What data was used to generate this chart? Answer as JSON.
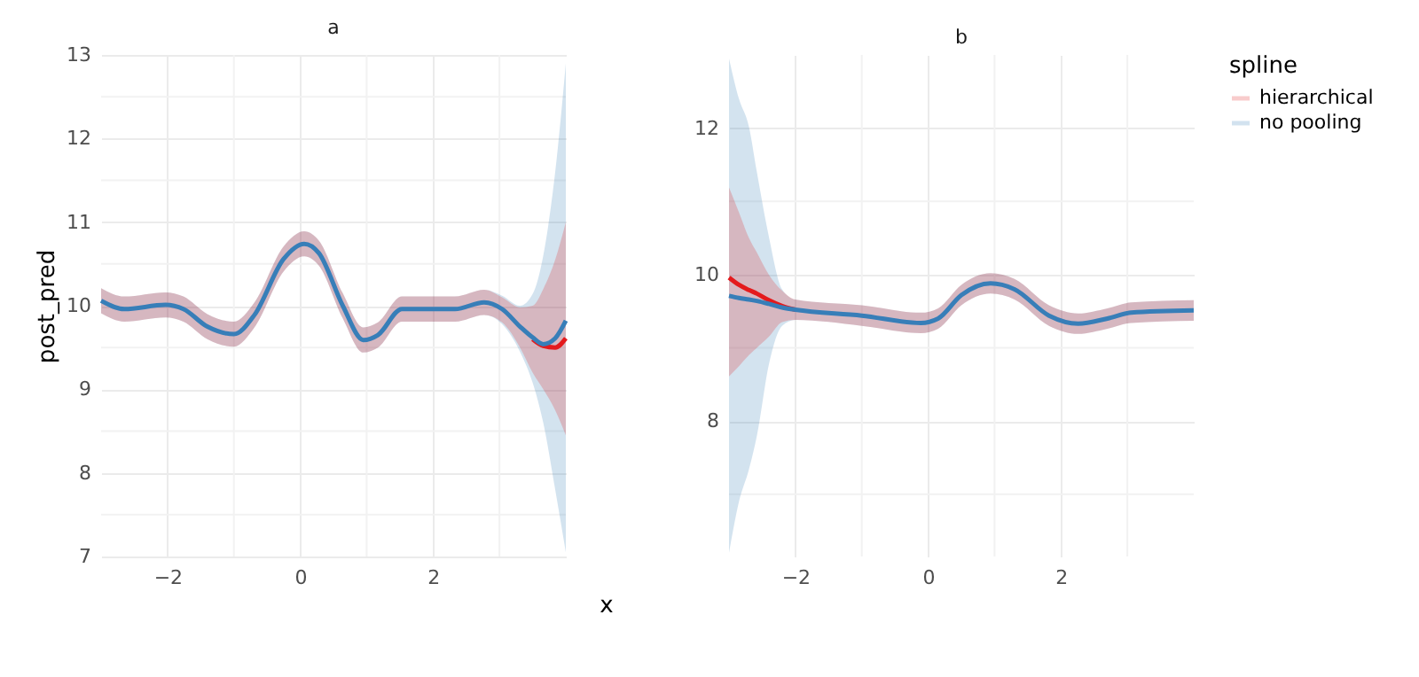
{
  "chart_data": [
    {
      "type": "line",
      "title": "a",
      "legend_title": "spline",
      "legend": "right",
      "xlabel": "x",
      "ylabel": "post_pred",
      "xlim": [
        -3,
        4
      ],
      "ylim": [
        7,
        13
      ],
      "xticks": [
        {
          "value": -2,
          "label": "−2"
        },
        {
          "value": -1,
          "label": null
        },
        {
          "value": 0,
          "label": "0"
        },
        {
          "value": 1,
          "label": null
        },
        {
          "value": 2,
          "label": "2"
        },
        {
          "value": 3,
          "label": null
        }
      ],
      "yticks": [
        7,
        {
          "value": 7.5,
          "label": null
        },
        8,
        {
          "value": 8.5,
          "label": null
        },
        9,
        {
          "value": 9.5,
          "label": null
        },
        10,
        {
          "value": 10.5,
          "label": null
        },
        11,
        {
          "value": 11.5,
          "label": null
        },
        12,
        {
          "value": 12.5,
          "label": null
        },
        13
      ],
      "grid": true,
      "series": [
        {
          "name": "hierarchical",
          "color": "#e41a1c",
          "x": [
            -3,
            -2.65,
            -2.03,
            -1.76,
            -1.4,
            -1.0,
            -0.69,
            -0.25,
            0.06,
            0.28,
            0.64,
            0.95,
            1.17,
            1.53,
            1.97,
            2.33,
            2.77,
            3.04,
            3.31,
            3.5,
            3.66,
            3.84,
            4.0
          ],
          "values": [
            null,
            null,
            null,
            null,
            null,
            null,
            null,
            null,
            null,
            null,
            null,
            null,
            null,
            null,
            null,
            null,
            null,
            null,
            null,
            9.6,
            9.52,
            9.5,
            9.61
          ],
          "lower": [
            9.91,
            9.81,
            9.86,
            9.81,
            9.6,
            9.51,
            9.74,
            10.41,
            10.59,
            10.48,
            9.85,
            9.44,
            9.5,
            9.81,
            9.81,
            9.81,
            9.89,
            9.8,
            9.5,
            9.2,
            9.0,
            8.75,
            8.45
          ],
          "upper": [
            10.21,
            10.11,
            10.16,
            10.11,
            9.9,
            9.81,
            10.04,
            10.71,
            10.89,
            10.78,
            10.15,
            9.74,
            9.8,
            10.11,
            10.11,
            10.11,
            10.19,
            10.1,
            9.98,
            10.0,
            10.2,
            10.55,
            11.0
          ]
        },
        {
          "name": "no pooling",
          "color": "#377eb8",
          "x": [
            -3,
            -2.65,
            -2.03,
            -1.76,
            -1.4,
            -1.0,
            -0.69,
            -0.25,
            0.06,
            0.28,
            0.64,
            0.95,
            1.17,
            1.53,
            1.97,
            2.33,
            2.77,
            3.04,
            3.31,
            3.5,
            3.66,
            3.84,
            4.0
          ],
          "values": [
            10.06,
            9.96,
            10.01,
            9.96,
            9.75,
            9.66,
            9.89,
            10.56,
            10.74,
            10.63,
            10.0,
            9.59,
            9.65,
            9.96,
            9.96,
            9.96,
            10.04,
            9.96,
            9.75,
            9.62,
            9.54,
            9.61,
            9.82
          ],
          "lower": [
            9.91,
            9.81,
            9.86,
            9.81,
            9.6,
            9.51,
            9.74,
            10.41,
            10.59,
            10.48,
            9.85,
            9.44,
            9.5,
            9.81,
            9.81,
            9.81,
            9.89,
            9.78,
            9.45,
            9.08,
            8.6,
            7.8,
            7.05
          ],
          "upper": [
            10.21,
            10.11,
            10.16,
            10.11,
            9.9,
            9.81,
            10.04,
            10.71,
            10.89,
            10.78,
            10.15,
            9.74,
            9.8,
            10.11,
            10.11,
            10.11,
            10.19,
            10.12,
            10.0,
            10.14,
            10.6,
            11.6,
            12.9
          ]
        }
      ]
    },
    {
      "type": "line",
      "title": "b",
      "xlim": [
        -3,
        4
      ],
      "ylim": [
        6.15,
        13
      ],
      "xticks": [
        {
          "value": -2,
          "label": "−2"
        },
        {
          "value": -1,
          "label": null
        },
        {
          "value": 0,
          "label": "0"
        },
        {
          "value": 1,
          "label": null
        },
        {
          "value": 2,
          "label": "2"
        },
        {
          "value": 3,
          "label": null
        }
      ],
      "yticks": [
        {
          "value": 7,
          "label": null
        },
        8,
        {
          "value": 9,
          "label": null
        },
        10,
        {
          "value": 11,
          "label": null
        },
        12
      ],
      "grid": true,
      "series": [
        {
          "name": "hierarchical",
          "color": "#e41a1c",
          "x": [
            -3,
            -2.85,
            -2.7,
            -2.58,
            -2.4,
            -2.2,
            -2.0,
            -1.0,
            -0.11,
            0.15,
            0.5,
            0.94,
            1.3,
            1.82,
            2.26,
            2.7,
            3.06,
            4.0
          ],
          "values": [
            9.96,
            9.86,
            9.79,
            9.74,
            9.65,
            9.57,
            9.52,
            null,
            null,
            null,
            null,
            null,
            null,
            null,
            null,
            null,
            null,
            null
          ],
          "lower": [
            8.61,
            8.75,
            8.9,
            9.0,
            9.15,
            9.35,
            9.38,
            9.3,
            9.2,
            9.26,
            9.58,
            9.74,
            9.66,
            9.3,
            9.19,
            9.26,
            9.34,
            9.37
          ],
          "upper": [
            11.19,
            10.85,
            10.5,
            10.3,
            10.0,
            9.78,
            9.66,
            9.58,
            9.48,
            9.54,
            9.86,
            10.02,
            9.94,
            9.58,
            9.47,
            9.54,
            9.62,
            9.65
          ]
        },
        {
          "name": "no pooling",
          "color": "#377eb8",
          "x": [
            -3,
            -2.85,
            -2.7,
            -2.58,
            -2.4,
            -2.2,
            -2.0,
            -1.0,
            -0.11,
            0.15,
            0.5,
            0.94,
            1.3,
            1.82,
            2.26,
            2.7,
            3.06,
            4.0
          ],
          "values": [
            9.71,
            9.68,
            9.66,
            9.64,
            9.6,
            9.55,
            9.52,
            9.44,
            9.34,
            9.4,
            9.72,
            9.88,
            9.8,
            9.44,
            9.33,
            9.4,
            9.48,
            9.51
          ],
          "lower": [
            6.2,
            6.9,
            7.34,
            7.8,
            8.77,
            9.3,
            9.38,
            9.3,
            9.2,
            9.26,
            9.58,
            9.74,
            9.66,
            9.3,
            9.19,
            9.26,
            9.34,
            9.37
          ],
          "upper": [
            12.95,
            12.4,
            12.02,
            11.4,
            10.52,
            9.8,
            9.66,
            9.58,
            9.48,
            9.54,
            9.86,
            10.02,
            9.94,
            9.58,
            9.47,
            9.54,
            9.62,
            9.65
          ]
        }
      ]
    }
  ]
}
